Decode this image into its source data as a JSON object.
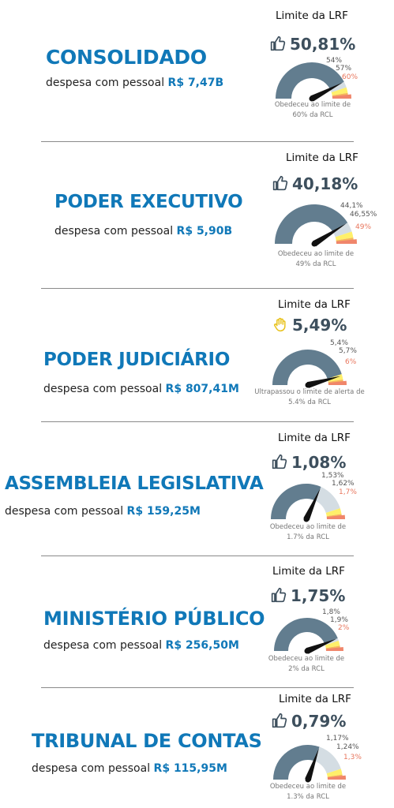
{
  "colors": {
    "title_blue": "#1078b8",
    "gauge_value": "#627d8f",
    "gauge_remaining": "#d4dde3",
    "alert_yellow": "#fff06a",
    "prudential_orange": "#f5b85c",
    "limit_red": "#f0866b",
    "needle": "#111111"
  },
  "sections": [
    {
      "title": "CONSOLIDADO",
      "desc_label": "despesa com pessoal",
      "amount": "R$ 7,47B",
      "limit_label": "Limite da LRF",
      "status_icon": "thumbs-up-icon",
      "percent": "50,81%",
      "value": 50.81,
      "limits": [
        54,
        57,
        60
      ],
      "thresholds": [
        "54%",
        "57%",
        "60%"
      ],
      "note_line1": "Obedeceu ao limite de",
      "note_line2": "60% da RCL"
    },
    {
      "title": "PODER EXECUTIVO",
      "desc_label": "despesa com pessoal",
      "amount": "R$ 5,90B",
      "limit_label": "Limite da LRF",
      "status_icon": "thumbs-up-icon",
      "percent": "40,18%",
      "value": 40.18,
      "limits": [
        44.1,
        46.55,
        49
      ],
      "thresholds": [
        "44,1%",
        "46,55%",
        "49%"
      ],
      "note_line1": "Obedeceu ao limite de",
      "note_line2": "49% da RCL"
    },
    {
      "title": "PODER JUDICIÁRIO",
      "desc_label": "despesa com pessoal",
      "amount": "R$ 807,41M",
      "limit_label": "Limite da LRF",
      "status_icon": "raised-hand-icon",
      "percent": "5,49%",
      "value": 5.49,
      "limits": [
        5.4,
        5.7,
        6
      ],
      "thresholds": [
        "5,4%",
        "5,7%",
        "6%"
      ],
      "note_line1": "Ultrapassou o limite de alerta de",
      "note_line2": "5.4% da RCL"
    },
    {
      "title": "ASSEMBLEIA LEGISLATIVA",
      "desc_label": "despesa com pessoal",
      "amount": "R$ 159,25M",
      "limit_label": "Limite da LRF",
      "status_icon": "thumbs-up-icon",
      "percent": "1,08%",
      "value": 1.08,
      "limits": [
        1.53,
        1.62,
        1.7
      ],
      "thresholds": [
        "1,53%",
        "1,62%",
        "1,7%"
      ],
      "note_line1": "Obedeceu ao limite de",
      "note_line2": "1.7% da RCL"
    },
    {
      "title": "MINISTÉRIO PÚBLICO",
      "desc_label": "despesa com pessoal",
      "amount": "R$ 256,50M",
      "limit_label": "Limite da LRF",
      "status_icon": "thumbs-up-icon",
      "percent": "1,75%",
      "value": 1.75,
      "limits": [
        1.8,
        1.9,
        2
      ],
      "thresholds": [
        "1,8%",
        "1,9%",
        "2%"
      ],
      "note_line1": "Obedeceu ao limite de",
      "note_line2": "2% da RCL"
    },
    {
      "title": "TRIBUNAL DE CONTAS",
      "desc_label": "despesa com pessoal",
      "amount": "R$ 115,95M",
      "limit_label": "Limite da LRF",
      "status_icon": "thumbs-up-icon",
      "percent": "0,79%",
      "value": 0.79,
      "limits": [
        1.17,
        1.24,
        1.3
      ],
      "thresholds": [
        "1,17%",
        "1,24%",
        "1,3%"
      ],
      "note_line1": "Obedeceu ao limite de",
      "note_line2": "1.3% da RCL"
    }
  ]
}
